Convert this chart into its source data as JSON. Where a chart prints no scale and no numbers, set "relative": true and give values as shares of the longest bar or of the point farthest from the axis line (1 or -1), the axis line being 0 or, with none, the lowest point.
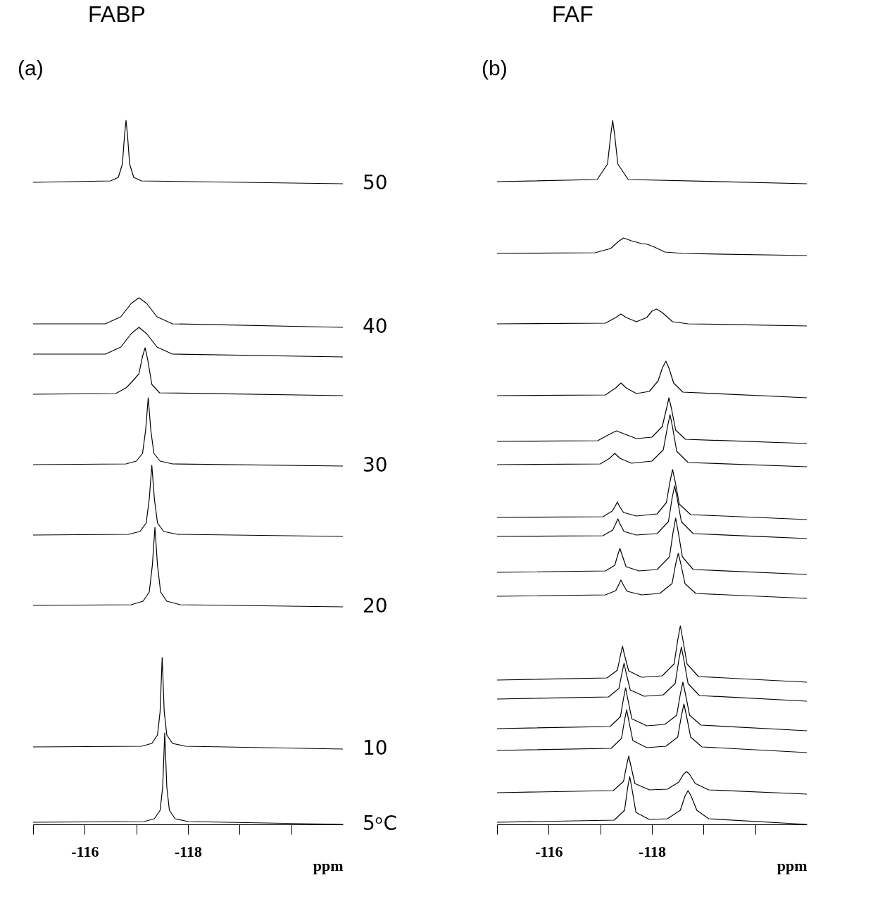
{
  "chart_data": [
    {
      "type": "line",
      "relative": true,
      "title": "FABP",
      "xlabel": "ppm",
      "annotations": [
        "(a)"
      ],
      "xlim": [
        -115,
        -121
      ],
      "xticks": [
        {
          "value": -115,
          "label": null
        },
        -116,
        {
          "value": -117,
          "label": null
        },
        -118,
        {
          "value": -119,
          "label": null
        },
        {
          "value": -120,
          "label": null
        }
      ],
      "tick_labels": "x",
      "grid": false,
      "legend": false,
      "marker": "none",
      "line_style": "solid",
      "series": [
        {
          "name": "50",
          "color": "#000000",
          "x": [
            -115,
            -116.5,
            -116.65,
            -116.73,
            -116.77,
            -116.8,
            -116.83,
            -116.87,
            -116.95,
            -117.1,
            -121
          ],
          "values": [
            0.912,
            0.914,
            0.919,
            0.938,
            0.978,
            1.0,
            0.978,
            0.938,
            0.919,
            0.914,
            0.91
          ]
        },
        {
          "name": "40",
          "color": "#000000",
          "x": [
            -115,
            -116.4,
            -116.7,
            -116.9,
            -117.05,
            -117.2,
            -117.4,
            -117.7,
            -121
          ],
          "values": [
            0.711,
            0.711,
            0.721,
            0.74,
            0.748,
            0.74,
            0.721,
            0.711,
            0.706
          ]
        },
        {
          "color": "#000000",
          "x": [
            -115,
            -116.4,
            -116.7,
            -116.9,
            -117.05,
            -117.2,
            -117.4,
            -117.7,
            -121
          ],
          "values": [
            0.668,
            0.668,
            0.678,
            0.697,
            0.706,
            0.697,
            0.678,
            0.668,
            0.664
          ]
        },
        {
          "color": "#000000",
          "x": [
            -115,
            -116.6,
            -116.8,
            -116.92,
            -117.05,
            -117.12,
            -117.17,
            -117.22,
            -117.3,
            -117.45,
            -121
          ],
          "values": [
            0.611,
            0.612,
            0.62,
            0.629,
            0.64,
            0.665,
            0.677,
            0.66,
            0.625,
            0.613,
            0.609
          ]
        },
        {
          "name": "30",
          "color": "#000000",
          "x": [
            -115,
            -116.8,
            -117.0,
            -117.12,
            -117.18,
            -117.23,
            -117.28,
            -117.34,
            -117.46,
            -117.7,
            -121
          ],
          "values": [
            0.511,
            0.512,
            0.516,
            0.527,
            0.56,
            0.606,
            0.56,
            0.527,
            0.516,
            0.512,
            0.509
          ]
        },
        {
          "color": "#000000",
          "x": [
            -115,
            -116.85,
            -117.07,
            -117.19,
            -117.25,
            -117.3,
            -117.35,
            -117.41,
            -117.53,
            -117.8,
            -121
          ],
          "values": [
            0.411,
            0.412,
            0.416,
            0.428,
            0.462,
            0.51,
            0.462,
            0.428,
            0.416,
            0.412,
            0.409
          ]
        },
        {
          "name": "20",
          "color": "#000000",
          "x": [
            -115,
            -116.9,
            -117.13,
            -117.25,
            -117.31,
            -117.36,
            -117.41,
            -117.47,
            -117.59,
            -117.85,
            -121
          ],
          "values": [
            0.311,
            0.312,
            0.317,
            0.33,
            0.368,
            0.422,
            0.368,
            0.33,
            0.317,
            0.312,
            0.309
          ]
        },
        {
          "name": "10",
          "color": "#000000",
          "x": [
            -115,
            -117.1,
            -117.3,
            -117.41,
            -117.46,
            -117.5,
            -117.54,
            -117.59,
            -117.7,
            -117.95,
            -121
          ],
          "values": [
            0.11,
            0.111,
            0.115,
            0.127,
            0.16,
            0.237,
            0.16,
            0.127,
            0.115,
            0.111,
            0.107
          ]
        },
        {
          "name": "5ᵒC",
          "color": "#000000",
          "x": [
            -115,
            -117.15,
            -117.35,
            -117.46,
            -117.51,
            -117.55,
            -117.59,
            -117.64,
            -117.75,
            -118.0,
            -121
          ],
          "values": [
            0.003,
            0.004,
            0.008,
            0.02,
            0.053,
            0.13,
            0.053,
            0.02,
            0.008,
            0.004,
            0.0
          ]
        }
      ]
    },
    {
      "type": "line",
      "relative": true,
      "title": "FAF",
      "xlabel": "ppm",
      "annotations": [
        "(b)"
      ],
      "xlim": [
        -115,
        -121
      ],
      "xticks": [
        {
          "value": -115,
          "label": null
        },
        -116,
        {
          "value": -117,
          "label": null
        },
        -118,
        {
          "value": -119,
          "label": null
        },
        {
          "value": -120,
          "label": null
        }
      ],
      "tick_labels": "x",
      "grid": false,
      "legend": false,
      "marker": "none",
      "line_style": "solid",
      "series": [
        {
          "color": "#000000",
          "x": [
            -115,
            -116.94,
            -117.14,
            -117.2,
            -117.24,
            -117.28,
            -117.34,
            -117.54,
            -121
          ],
          "values": [
            0.913,
            0.916,
            0.938,
            0.978,
            1.0,
            0.978,
            0.938,
            0.916,
            0.91
          ]
        },
        {
          "color": "#000000",
          "x": [
            -115,
            -116.9,
            -117.2,
            -117.35,
            -117.45,
            -117.6,
            -117.8,
            -117.91,
            -118.05,
            -118.25,
            -118.6,
            -121
          ],
          "values": [
            0.811,
            0.812,
            0.818,
            0.828,
            0.833,
            0.829,
            0.825,
            0.824,
            0.82,
            0.813,
            0.811,
            0.808
          ]
        },
        {
          "color": "#000000",
          "x": [
            -115,
            -117.1,
            -117.3,
            -117.4,
            -117.5,
            -117.7,
            -117.9,
            -118.0,
            -118.09,
            -118.2,
            -118.4,
            -118.7,
            -121
          ],
          "values": [
            0.711,
            0.712,
            0.72,
            0.725,
            0.72,
            0.714,
            0.72,
            0.729,
            0.732,
            0.727,
            0.714,
            0.711,
            0.708
          ]
        },
        {
          "color": "#000000",
          "x": [
            -115,
            -117.1,
            -117.3,
            -117.4,
            -117.5,
            -117.7,
            -117.95,
            -118.12,
            -118.2,
            -118.27,
            -118.33,
            -118.42,
            -118.6,
            -121
          ],
          "values": [
            0.609,
            0.61,
            0.62,
            0.627,
            0.62,
            0.612,
            0.615,
            0.63,
            0.648,
            0.658,
            0.648,
            0.627,
            0.614,
            0.606
          ]
        },
        {
          "color": "#000000",
          "x": [
            -115,
            -116.95,
            -117.15,
            -117.31,
            -117.45,
            -117.7,
            -118.0,
            -118.2,
            -118.28,
            -118.33,
            -118.38,
            -118.46,
            -118.65,
            -121
          ],
          "values": [
            0.544,
            0.545,
            0.553,
            0.559,
            0.555,
            0.548,
            0.55,
            0.565,
            0.59,
            0.606,
            0.59,
            0.56,
            0.547,
            0.541
          ]
        },
        {
          "color": "#000000",
          "x": [
            -115,
            -117.0,
            -117.18,
            -117.28,
            -117.38,
            -117.6,
            -118.0,
            -118.22,
            -118.3,
            -118.35,
            -118.4,
            -118.48,
            -118.7,
            -121
          ],
          "values": [
            0.511,
            0.512,
            0.52,
            0.527,
            0.52,
            0.513,
            0.516,
            0.532,
            0.564,
            0.582,
            0.564,
            0.53,
            0.514,
            0.508
          ]
        },
        {
          "color": "#000000",
          "x": [
            -115,
            -117.05,
            -117.23,
            -117.29,
            -117.33,
            -117.37,
            -117.45,
            -117.7,
            -118.1,
            -118.28,
            -118.35,
            -118.4,
            -118.45,
            -118.53,
            -118.75,
            -121
          ],
          "values": [
            0.436,
            0.437,
            0.445,
            0.452,
            0.458,
            0.452,
            0.443,
            0.438,
            0.441,
            0.457,
            0.487,
            0.504,
            0.487,
            0.455,
            0.44,
            0.433
          ]
        },
        {
          "color": "#000000",
          "x": [
            -115,
            -117.05,
            -117.24,
            -117.3,
            -117.34,
            -117.38,
            -117.46,
            -117.7,
            -118.1,
            -118.32,
            -118.39,
            -118.44,
            -118.49,
            -118.57,
            -118.8,
            -121
          ],
          "values": [
            0.409,
            0.41,
            0.418,
            0.427,
            0.434,
            0.427,
            0.416,
            0.411,
            0.413,
            0.43,
            0.463,
            0.481,
            0.463,
            0.43,
            0.413,
            0.406
          ]
        },
        {
          "color": "#000000",
          "x": [
            -115,
            -117.1,
            -117.28,
            -117.34,
            -117.38,
            -117.42,
            -117.5,
            -117.75,
            -118.1,
            -118.34,
            -118.41,
            -118.46,
            -118.51,
            -118.59,
            -118.8,
            -121
          ],
          "values": [
            0.358,
            0.36,
            0.368,
            0.383,
            0.392,
            0.383,
            0.366,
            0.36,
            0.362,
            0.38,
            0.415,
            0.435,
            0.415,
            0.38,
            0.362,
            0.355
          ]
        },
        {
          "color": "#000000",
          "x": [
            -115,
            -117.1,
            -117.3,
            -117.36,
            -117.4,
            -117.44,
            -117.52,
            -117.8,
            -118.15,
            -118.39,
            -118.46,
            -118.51,
            -118.56,
            -118.64,
            -118.85,
            -121
          ],
          "values": [
            0.324,
            0.326,
            0.332,
            0.341,
            0.347,
            0.341,
            0.331,
            0.326,
            0.328,
            0.342,
            0.37,
            0.385,
            0.37,
            0.342,
            0.328,
            0.321
          ]
        },
        {
          "color": "#000000",
          "x": [
            -115,
            -117.13,
            -117.33,
            -117.39,
            -117.43,
            -117.47,
            -117.55,
            -117.8,
            -118.2,
            -118.43,
            -118.5,
            -118.55,
            -118.6,
            -118.68,
            -118.9,
            -121
          ],
          "values": [
            0.205,
            0.208,
            0.219,
            0.24,
            0.253,
            0.24,
            0.218,
            0.209,
            0.211,
            0.228,
            0.262,
            0.282,
            0.262,
            0.228,
            0.21,
            0.202
          ]
        },
        {
          "color": "#000000",
          "x": [
            -115,
            -117.16,
            -117.36,
            -117.42,
            -117.46,
            -117.5,
            -117.58,
            -117.85,
            -118.22,
            -118.45,
            -118.52,
            -118.57,
            -118.62,
            -118.7,
            -118.92,
            -121
          ],
          "values": [
            0.178,
            0.181,
            0.193,
            0.215,
            0.229,
            0.215,
            0.191,
            0.182,
            0.184,
            0.2,
            0.233,
            0.252,
            0.233,
            0.2,
            0.183,
            0.175
          ]
        },
        {
          "color": "#000000",
          "x": [
            -115,
            -117.19,
            -117.39,
            -117.45,
            -117.49,
            -117.53,
            -117.61,
            -117.9,
            -118.25,
            -118.48,
            -118.55,
            -118.6,
            -118.65,
            -118.73,
            -118.95,
            -121
          ],
          "values": [
            0.136,
            0.139,
            0.153,
            0.179,
            0.194,
            0.179,
            0.15,
            0.14,
            0.142,
            0.155,
            0.185,
            0.202,
            0.185,
            0.155,
            0.141,
            0.133
          ]
        },
        {
          "color": "#000000",
          "x": [
            -115,
            -117.21,
            -117.41,
            -117.47,
            -117.51,
            -117.55,
            -117.63,
            -117.9,
            -118.27,
            -118.5,
            -118.57,
            -118.62,
            -118.67,
            -118.75,
            -118.97,
            -121
          ],
          "values": [
            0.105,
            0.108,
            0.122,
            0.148,
            0.163,
            0.148,
            0.119,
            0.109,
            0.111,
            0.124,
            0.154,
            0.171,
            0.154,
            0.124,
            0.11,
            0.102
          ]
        },
        {
          "color": "#000000",
          "x": [
            -115,
            -117.25,
            -117.45,
            -117.51,
            -117.55,
            -117.59,
            -117.67,
            -117.95,
            -118.3,
            -118.52,
            -118.61,
            -118.67,
            -118.73,
            -118.84,
            -119.1,
            -121
          ],
          "values": [
            0.045,
            0.048,
            0.061,
            0.084,
            0.097,
            0.084,
            0.058,
            0.049,
            0.05,
            0.06,
            0.071,
            0.075,
            0.071,
            0.058,
            0.049,
            0.043
          ]
        },
        {
          "color": "#000000",
          "x": [
            -115,
            -117.27,
            -117.47,
            -117.53,
            -117.57,
            -117.61,
            -117.69,
            -117.95,
            -118.3,
            -118.55,
            -118.64,
            -118.7,
            -118.76,
            -118.87,
            -119.1,
            -121
          ],
          "values": [
            0.003,
            0.006,
            0.02,
            0.052,
            0.068,
            0.052,
            0.017,
            0.007,
            0.008,
            0.02,
            0.04,
            0.048,
            0.04,
            0.02,
            0.008,
            0.0
          ]
        }
      ]
    }
  ]
}
